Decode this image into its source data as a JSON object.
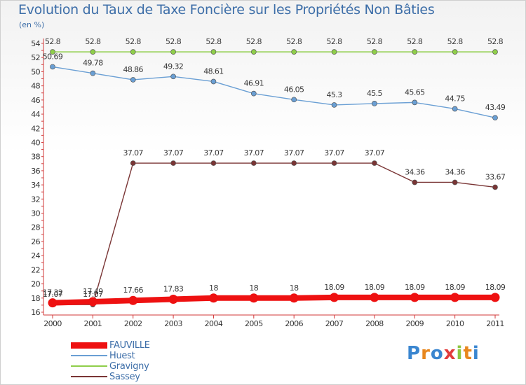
{
  "chart_data": {
    "type": "line",
    "title": "Evolution du Taux de Taxe Foncière sur les Propriétés Non Bâties",
    "unit_label": "(en %)",
    "x": [
      "2000",
      "2001",
      "2002",
      "2003",
      "2004",
      "2005",
      "2006",
      "2007",
      "2008",
      "2009",
      "2010",
      "2011"
    ],
    "ylim": [
      16,
      54
    ],
    "yticks": [
      16,
      18,
      20,
      22,
      24,
      26,
      28,
      30,
      32,
      34,
      36,
      38,
      40,
      42,
      44,
      46,
      48,
      50,
      52,
      54
    ],
    "grid": false,
    "legend_position": "bottom-left",
    "series": [
      {
        "name": "Gravigny",
        "color": "#8fce4a",
        "values": [
          52.8,
          52.8,
          52.8,
          52.8,
          52.8,
          52.8,
          52.8,
          52.8,
          52.8,
          52.8,
          52.8,
          52.8
        ],
        "labels": [
          "52.8",
          "52.8",
          "52.8",
          "52.8",
          "52.8",
          "52.8",
          "52.8",
          "52.8",
          "52.8",
          "52.8",
          "52.8",
          "52.8"
        ]
      },
      {
        "name": "Huest",
        "color": "#6a9fd4",
        "values": [
          50.69,
          49.78,
          48.86,
          49.32,
          48.61,
          46.91,
          46.05,
          45.3,
          45.5,
          45.65,
          44.75,
          43.49
        ],
        "labels": [
          "50.69",
          "49.78",
          "48.86",
          "49.32",
          "48.61",
          "46.91",
          "46.05",
          "45.3",
          "45.5",
          "45.65",
          "44.75",
          "43.49"
        ]
      },
      {
        "name": "Sassey",
        "color": "#7a3535",
        "values": [
          17.07,
          17.07,
          37.07,
          37.07,
          37.07,
          37.07,
          37.07,
          37.07,
          37.07,
          34.36,
          34.36,
          33.67
        ],
        "labels": [
          "17.07",
          "17.07",
          "37.07",
          "37.07",
          "37.07",
          "37.07",
          "37.07",
          "37.07",
          "37.07",
          "34.36",
          "34.36",
          "33.67"
        ]
      },
      {
        "name": "FAUVILLE",
        "color": "#ee1111",
        "values": [
          17.32,
          17.49,
          17.66,
          17.83,
          18,
          18,
          18,
          18.09,
          18.09,
          18.09,
          18.09,
          18.09
        ],
        "labels": [
          "17.32",
          "17.49",
          "17.66",
          "17.83",
          "18",
          "18",
          "18",
          "18.09",
          "18.09",
          "18.09",
          "18.09",
          "18.09"
        ]
      }
    ]
  },
  "legend": [
    {
      "name": "FAUVILLE",
      "color": "#ee1111",
      "thick": true
    },
    {
      "name": "Huest",
      "color": "#6a9fd4",
      "thick": false
    },
    {
      "name": "Gravigny",
      "color": "#8fce4a",
      "thick": false
    },
    {
      "name": "Sassey",
      "color": "#7a3535",
      "thick": false
    }
  ],
  "logo": {
    "text": "Proxiti"
  }
}
